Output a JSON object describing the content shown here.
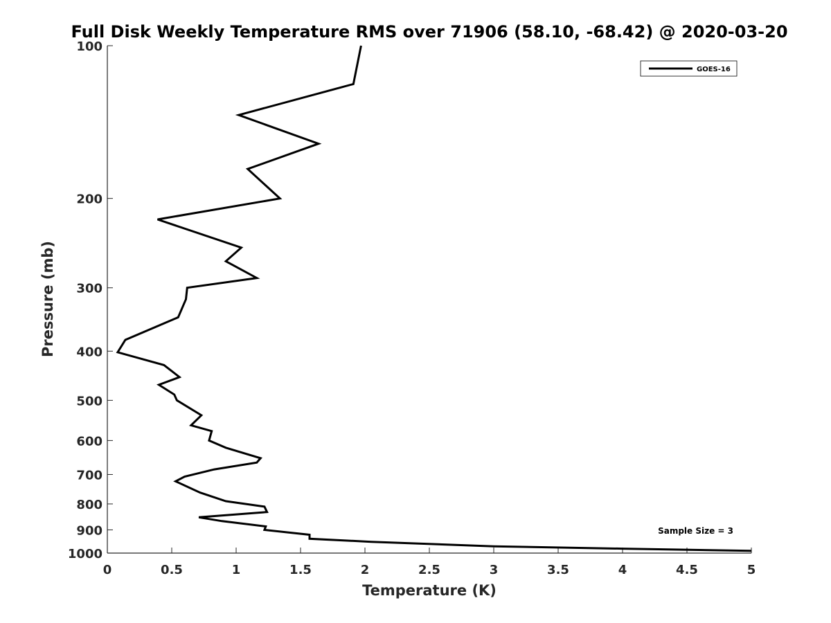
{
  "chart_data": {
    "type": "line",
    "title": "Full Disk Weekly Temperature RMS over 71906 (58.10, -68.42) @ 2020-03-20",
    "xlabel": "Temperature (K)",
    "ylabel": "Pressure (mb)",
    "xlim": [
      0,
      5
    ],
    "ylim": [
      100,
      1000
    ],
    "y_scale": "log",
    "y_reversed": true,
    "grid": false,
    "legend_position": "top-right",
    "x_ticks": [
      0,
      0.5,
      1,
      1.5,
      2,
      2.5,
      3,
      3.5,
      4,
      4.5,
      5
    ],
    "x_tick_labels": [
      "0",
      "0.5",
      "1",
      "1.5",
      "2",
      "2.5",
      "3",
      "3.5",
      "4",
      "4.5",
      "5"
    ],
    "y_ticks": [
      100,
      200,
      300,
      400,
      500,
      600,
      700,
      800,
      900,
      1000
    ],
    "y_tick_labels": [
      "100",
      "200",
      "300",
      "400",
      "500",
      "600",
      "700",
      "800",
      "900",
      "1000"
    ],
    "series": [
      {
        "name": "GOES-16",
        "color": "#000000",
        "x": [
          1.97,
          1.91,
          1.02,
          1.64,
          1.09,
          1.34,
          0.39,
          1.04,
          0.92,
          1.16,
          0.62,
          0.61,
          0.55,
          0.14,
          0.08,
          0.44,
          0.56,
          0.4,
          0.52,
          0.54,
          0.73,
          0.65,
          0.81,
          0.79,
          0.92,
          1.19,
          1.16,
          0.83,
          0.6,
          0.53,
          0.72,
          0.92,
          1.22,
          1.24,
          0.71,
          0.89,
          1.23,
          1.22,
          1.57,
          1.57,
          2.05,
          3.0,
          4.0,
          5.0
        ],
        "y": [
          100,
          119,
          137,
          156,
          175,
          200,
          220,
          250,
          266,
          287,
          300,
          316,
          343,
          380,
          402,
          426,
          450,
          466,
          487,
          500,
          535,
          560,
          575,
          600,
          620,
          650,
          663,
          684,
          707,
          722,
          760,
          790,
          810,
          830,
          850,
          865,
          886,
          900,
          920,
          937,
          950,
          970,
          980,
          990
        ]
      }
    ],
    "annotations": [
      "Sample Size = 3"
    ]
  }
}
